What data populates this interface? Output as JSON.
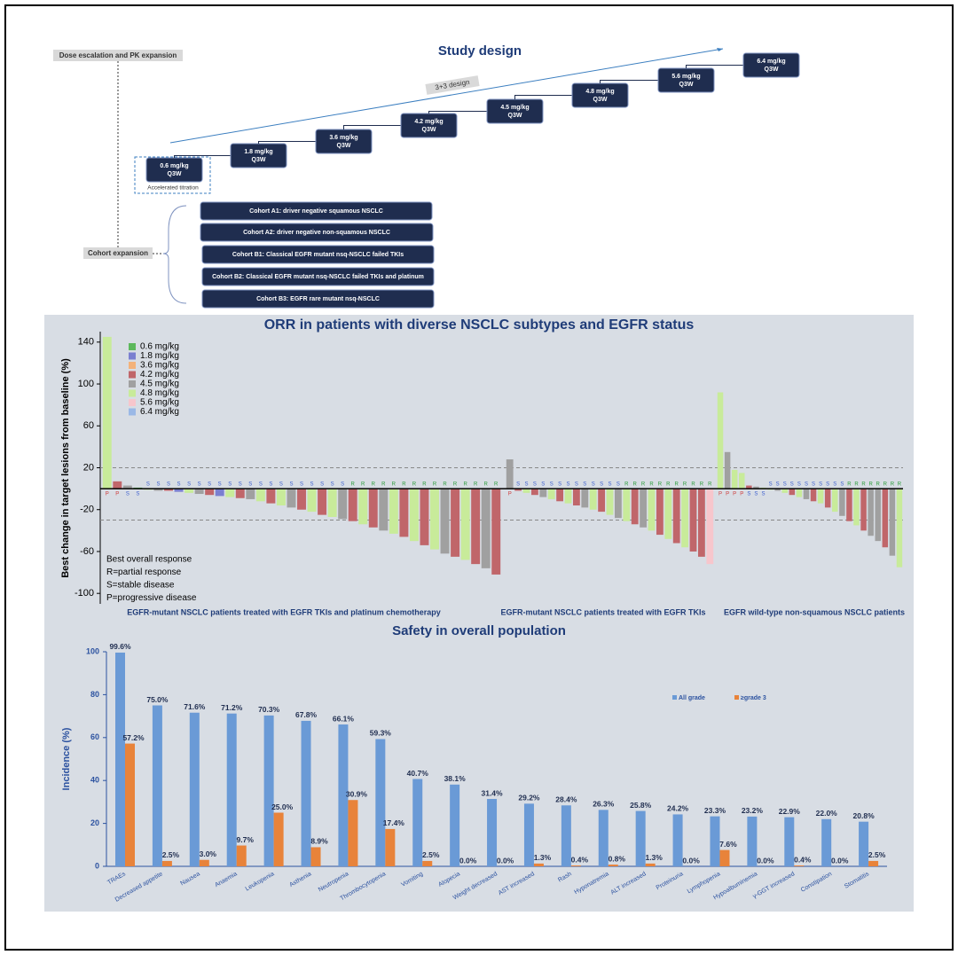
{
  "study_design": {
    "title": "Study design",
    "dose_escalation_label": "Dose escalation and PK expansion",
    "cohort_expansion_label": "Cohort expansion",
    "design_label": "3+3 design",
    "accelerated_note": "Accelerated titration",
    "doses": [
      {
        "dose": "0.6 mg/kg",
        "schedule": "Q3W"
      },
      {
        "dose": "1.8 mg/kg",
        "schedule": "Q3W"
      },
      {
        "dose": "3.6 mg/kg",
        "schedule": "Q3W"
      },
      {
        "dose": "4.2 mg/kg",
        "schedule": "Q3W"
      },
      {
        "dose": "4.5 mg/kg",
        "schedule": "Q3W"
      },
      {
        "dose": "4.8 mg/kg",
        "schedule": "Q3W"
      },
      {
        "dose": "5.6 mg/kg",
        "schedule": "Q3W"
      },
      {
        "dose": "6.4 mg/kg",
        "schedule": "Q3W"
      }
    ],
    "cohorts": [
      "Cohort A1: driver negative squamous NSCLC",
      "Cohort A2: driver negative non-squamous NSCLC",
      "Cohort B1: Classical EGFR mutant nsq-NSCLC failed TKIs",
      "Cohort B2: Classical EGFR mutant nsq-NSCLC failed TKIs and platinum",
      "Cohort B3: EGFR rare mutant nsq-NSCLC"
    ]
  },
  "chart_data": [
    {
      "type": "waterfall",
      "title": "ORR in patients with diverse NSCLC subtypes and EGFR status",
      "y_label": "Best  change in target lesions from baseline (%)",
      "ylim": [
        -110,
        150
      ],
      "yticks": [
        140,
        100,
        60,
        20,
        -20,
        -60,
        -100
      ],
      "reference_lines": [
        20,
        -30
      ],
      "legend": [
        {
          "name": "0.6 mg/kg",
          "color": "#5cb85c"
        },
        {
          "name": "1.8 mg/kg",
          "color": "#7a7fd0"
        },
        {
          "name": "3.6 mg/kg",
          "color": "#f3b27a"
        },
        {
          "name": "4.2 mg/kg",
          "color": "#c0666a"
        },
        {
          "name": "4.5 mg/kg",
          "color": "#a0a0a0"
        },
        {
          "name": "4.8 mg/kg",
          "color": "#c8eb9a"
        },
        {
          "name": "5.6 mg/kg",
          "color": "#f7c6cc"
        },
        {
          "name": "6.4 mg/kg",
          "color": "#9ab8e6"
        }
      ],
      "annotations": [
        "Best overall response",
        "R=partial response",
        "S=stable disease",
        "P=progressive disease"
      ],
      "groups": [
        {
          "name": "EGFR-mutant NSCLC patients treated with EGFR TKIs and platinum chemotherapy",
          "values": [
            145,
            7,
            3,
            1,
            -1,
            -2,
            -2,
            -3,
            -4,
            -5,
            -6,
            -7,
            -8,
            -9,
            -10,
            -12,
            -14,
            -16,
            -18,
            -20,
            -22,
            -25,
            -27,
            -29,
            -31,
            -34,
            -37,
            -40,
            -43,
            -46,
            -50,
            -54,
            -58,
            -62,
            -65,
            -68,
            -72,
            -76,
            -82
          ],
          "colors": [
            "#c8eb9a",
            "#c0666a",
            "#a0a0a0",
            "#5cb85c",
            "#c8eb9a",
            "#a0a0a0",
            "#c0666a",
            "#7a7fd0",
            "#c8eb9a",
            "#a0a0a0",
            "#c0666a",
            "#7a7fd0",
            "#c8eb9a",
            "#c0666a",
            "#a0a0a0",
            "#c8eb9a",
            "#c0666a",
            "#c8eb9a",
            "#a0a0a0",
            "#c0666a",
            "#c8eb9a",
            "#c0666a",
            "#c8eb9a",
            "#a0a0a0",
            "#c0666a",
            "#c8eb9a",
            "#c0666a",
            "#a0a0a0",
            "#c8eb9a",
            "#c0666a",
            "#c8eb9a",
            "#c0666a",
            "#c8eb9a",
            "#a0a0a0",
            "#c0666a",
            "#c8eb9a",
            "#c0666a",
            "#a0a0a0",
            "#c0666a"
          ],
          "responses": [
            "P",
            "P",
            "S",
            "S",
            "S",
            "S",
            "S",
            "S",
            "S",
            "S",
            "S",
            "S",
            "S",
            "S",
            "S",
            "S",
            "S",
            "S",
            "S",
            "S",
            "S",
            "S",
            "S",
            "S",
            "R",
            "R",
            "R",
            "R",
            "R",
            "R",
            "R",
            "R",
            "R",
            "R",
            "R",
            "R",
            "R",
            "R",
            "R"
          ]
        },
        {
          "name": "EGFR-mutant NSCLC patients treated with EGFR TKIs",
          "values": [
            28,
            -2,
            -4,
            -6,
            -8,
            -10,
            -12,
            -14,
            -16,
            -18,
            -20,
            -22,
            -25,
            -28,
            -31,
            -34,
            -37,
            -40,
            -44,
            -48,
            -52,
            -56,
            -60,
            -65,
            -72
          ],
          "colors": [
            "#a0a0a0",
            "#c0666a",
            "#c8eb9a",
            "#c0666a",
            "#a0a0a0",
            "#c8eb9a",
            "#c0666a",
            "#c8eb9a",
            "#c0666a",
            "#a0a0a0",
            "#c8eb9a",
            "#c0666a",
            "#c8eb9a",
            "#a0a0a0",
            "#c8eb9a",
            "#c0666a",
            "#a0a0a0",
            "#c8eb9a",
            "#c0666a",
            "#c8eb9a",
            "#c0666a",
            "#c8eb9a",
            "#c0666a",
            "#c0666a",
            "#f7c6cc"
          ],
          "responses": [
            "P",
            "S",
            "S",
            "S",
            "S",
            "S",
            "S",
            "S",
            "S",
            "S",
            "S",
            "S",
            "S",
            "S",
            "R",
            "R",
            "R",
            "R",
            "R",
            "R",
            "R",
            "R",
            "R",
            "R",
            "R"
          ]
        },
        {
          "name": "EGFR wild-type non-squamous NSCLC patients",
          "values": [
            92,
            35,
            18,
            15,
            3,
            2,
            1,
            -1,
            -2,
            -4,
            -6,
            -8,
            -10,
            -12,
            -14,
            -18,
            -22,
            -26,
            -31,
            -35,
            -40,
            -45,
            -50,
            -56,
            -64,
            -75
          ],
          "colors": [
            "#c8eb9a",
            "#a0a0a0",
            "#c8eb9a",
            "#c8eb9a",
            "#c0666a",
            "#a0a0a0",
            "#c8eb9a",
            "#c8eb9a",
            "#a0a0a0",
            "#c8eb9a",
            "#c0666a",
            "#c8eb9a",
            "#a0a0a0",
            "#c0666a",
            "#c8eb9a",
            "#c0666a",
            "#c8eb9a",
            "#a0a0a0",
            "#c0666a",
            "#c8eb9a",
            "#c0666a",
            "#a0a0a0",
            "#a0a0a0",
            "#c0666a",
            "#a0a0a0",
            "#c8eb9a"
          ],
          "responses": [
            "P",
            "P",
            "P",
            "P",
            "S",
            "S",
            "S",
            "S",
            "S",
            "S",
            "S",
            "S",
            "S",
            "S",
            "S",
            "S",
            "S",
            "S",
            "R",
            "R",
            "R",
            "R",
            "R",
            "R",
            "R",
            "R"
          ]
        }
      ]
    },
    {
      "type": "bar",
      "title": "Safety in overall population",
      "y_label": "Incidence (%)",
      "ylim": [
        0,
        100
      ],
      "yticks": [
        0,
        20,
        40,
        60,
        80,
        100
      ],
      "legend_position": "upper right",
      "categories": [
        "TRAEs",
        "Decreased appetite",
        "Nausea",
        "Anaemia",
        "Leukopenia",
        "Asthenia",
        "Neutropenia",
        "Thrombocytopenia",
        "Vomiting",
        "Alopecia",
        "Weight decreased",
        "AST increased",
        "Rash",
        "Hyponatremia",
        "ALT increased",
        "Proteinuria",
        "Lymphopenia",
        "Hypoalbuminemia",
        "γ-GGT increased",
        "Constipation",
        "Stomatitis"
      ],
      "series": [
        {
          "name": "All grade",
          "color": "#6a9ad6",
          "values": [
            99.6,
            75.0,
            71.6,
            71.2,
            70.3,
            67.8,
            66.1,
            59.3,
            40.7,
            38.1,
            31.4,
            29.2,
            28.4,
            26.3,
            25.8,
            24.2,
            23.3,
            23.2,
            22.9,
            22.0,
            20.8
          ],
          "value_labels": [
            "99.6%",
            "75.0%",
            "71.6%",
            "71.2%",
            "70.3%",
            "67.8%",
            "66.1%",
            "59.3%",
            "40.7%",
            "38.1%",
            "31.4%",
            "29.2%",
            "28.4%",
            "26.3%",
            "25.8%",
            "24.2%",
            "23.3%",
            "23.2%",
            "22.9%",
            "22.0%",
            "20.8%"
          ]
        },
        {
          "name": "≥grade 3",
          "color": "#e8833a",
          "values": [
            57.2,
            2.5,
            3.0,
            9.7,
            25.0,
            8.9,
            30.9,
            17.4,
            2.5,
            0.0,
            0.0,
            1.3,
            0.4,
            0.8,
            1.3,
            0.0,
            7.6,
            0.0,
            0.4,
            0.0,
            2.5
          ],
          "value_labels": [
            "57.2%",
            "2.5%",
            "3.0%",
            "9.7%",
            "25.0%",
            "8.9%",
            "30.9%",
            "17.4%",
            "2.5%",
            "0.0%",
            "0.0%",
            "1.3%",
            "0.4%",
            "0.8%",
            "1.3%",
            "0.0%",
            "7.6%",
            "0.0%",
            "0.4%",
            "0.0%",
            "2.5%"
          ]
        }
      ]
    }
  ]
}
